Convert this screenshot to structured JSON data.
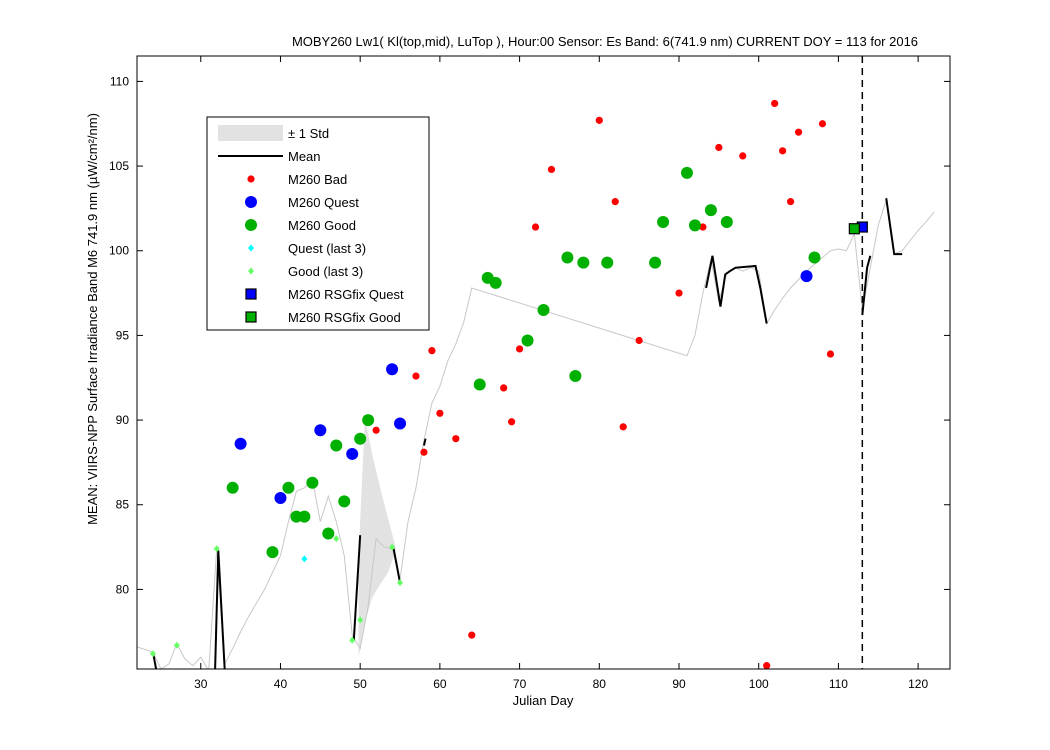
{
  "chart_data": {
    "type": "scatter",
    "title": "MOBY260   Lw1( Kl(top,mid), LuTop ),   Hour:00 Sensor: Es Band: 6(741.9 nm)   CURRENT DOY = 113 for 2016",
    "xlabel": "Julian Day",
    "ylabel": "MEAN: VIIRS-NPP Surface Irradiance Band M6 741.9 nm (µW/cm²/nm)",
    "xlim": [
      22,
      124
    ],
    "ylim": [
      75.3,
      111.5
    ],
    "xticks": [
      "30",
      "40",
      "50",
      "60",
      "70",
      "80",
      "90",
      "100",
      "110",
      "120"
    ],
    "yticks": [
      "80",
      "85",
      "90",
      "95",
      "100",
      "105",
      "110"
    ],
    "grid": false,
    "legend_position": "top-left",
    "current_doy": 113,
    "colors": {
      "bad": "#ff0000",
      "quest": "#0000ff",
      "good": "#00b000",
      "quest_last3": "#00ffff",
      "good_last3": "#66ff66",
      "std_band": "#e2e2e2",
      "mean": "#000000",
      "thin_line": "#c8c8c8"
    },
    "legend": [
      {
        "label": "± 1 Std",
        "kind": "band"
      },
      {
        "label": "Mean",
        "kind": "line"
      },
      {
        "label": "M260 Bad",
        "kind": "bad"
      },
      {
        "label": "M260 Quest",
        "kind": "quest"
      },
      {
        "label": "M260 Good",
        "kind": "good"
      },
      {
        "label": "Quest (last 3)",
        "kind": "quest_last3"
      },
      {
        "label": "Good (last 3)",
        "kind": "good_last3"
      },
      {
        "label": "M260 RSGfix Quest",
        "kind": "rsg_quest"
      },
      {
        "label": "M260 RSGfix Good",
        "kind": "rsg_good"
      }
    ],
    "series": [
      {
        "name": "M260 Bad",
        "x": [
          52,
          57,
          58,
          59,
          60,
          62,
          64,
          68,
          69,
          70,
          72,
          74,
          80,
          82,
          83,
          85,
          90,
          93,
          95,
          98,
          101,
          102,
          103,
          104,
          105,
          108,
          109
        ],
        "y": [
          89.4,
          92.6,
          88.1,
          94.1,
          90.4,
          88.9,
          77.3,
          91.9,
          89.9,
          94.2,
          101.4,
          104.8,
          107.7,
          102.9,
          89.6,
          94.7,
          97.5,
          101.4,
          106.1,
          105.6,
          75.5,
          108.7,
          105.9,
          102.9,
          107.0,
          107.5,
          93.9
        ]
      },
      {
        "name": "M260 Quest",
        "x": [
          35,
          40,
          45,
          49,
          54,
          55,
          106
        ],
        "y": [
          88.6,
          85.4,
          89.4,
          88.0,
          93.0,
          89.8,
          98.5
        ]
      },
      {
        "name": "M260 Good",
        "x": [
          34,
          39,
          41,
          42,
          43,
          44,
          46,
          47,
          48,
          50,
          51,
          65,
          66,
          67,
          71,
          73,
          76,
          77,
          78,
          81,
          87,
          88,
          91,
          92,
          94,
          96,
          107
        ],
        "y": [
          86.0,
          82.2,
          86.0,
          84.3,
          84.3,
          86.3,
          83.3,
          88.5,
          85.2,
          88.9,
          90.0,
          92.1,
          98.4,
          98.1,
          94.7,
          96.5,
          99.6,
          92.6,
          99.3,
          99.3,
          99.3,
          101.7,
          104.6,
          101.5,
          102.4,
          101.7,
          99.6
        ]
      },
      {
        "name": "Quest (last 3)",
        "x": [
          43
        ],
        "y": [
          81.8
        ]
      },
      {
        "name": "Good (last 3)",
        "x": [
          24,
          27,
          32,
          47,
          49,
          50,
          54,
          55
        ],
        "y": [
          76.2,
          76.7,
          82.4,
          83.0,
          77.0,
          78.2,
          82.5,
          80.4
        ]
      },
      {
        "name": "M260 RSGfix Quest",
        "x": [
          113
        ],
        "y": [
          101.4
        ]
      },
      {
        "name": "M260 RSGfix Good",
        "x": [
          112
        ],
        "y": [
          101.3
        ]
      }
    ],
    "thin_line": {
      "x": [
        22,
        24,
        25,
        26,
        27,
        28,
        29,
        30,
        31,
        32,
        33,
        34,
        35,
        36,
        37,
        38,
        39,
        40,
        41,
        42,
        43,
        44,
        45,
        46,
        47,
        48,
        49,
        50,
        51,
        52,
        53,
        54,
        55,
        56,
        57,
        58,
        59,
        60,
        61,
        62,
        63,
        64,
        91,
        92,
        93,
        94,
        95,
        96,
        97,
        98,
        99,
        100,
        101,
        102,
        103,
        104,
        105,
        106,
        107,
        108,
        109,
        110,
        111,
        112,
        113,
        114,
        115,
        116,
        117,
        118,
        119,
        120,
        121,
        122
      ],
      "y": [
        76.6,
        76.3,
        75.3,
        75.6,
        76.8,
        75.9,
        75.5,
        76.0,
        75.2,
        82.4,
        75.6,
        76.5,
        77.5,
        78.4,
        79.2,
        80.0,
        81.0,
        82.0,
        84.0,
        85.8,
        86.0,
        86.5,
        84.0,
        85.5,
        84.0,
        82.0,
        77.3,
        76.5,
        79.0,
        83.0,
        82.5,
        82.4,
        80.6,
        84.0,
        86.0,
        88.8,
        91.0,
        92.0,
        93.5,
        94.5,
        95.8,
        97.8,
        93.8,
        95.0,
        97.5,
        99.5,
        97.0,
        98.7,
        99.0,
        98.8,
        99.0,
        98.8,
        95.7,
        96.5,
        97.2,
        97.8,
        98.3,
        98.8,
        99.2,
        99.6,
        100.0,
        100.1,
        100.0,
        101.0,
        96.5,
        99.0,
        101.5,
        103.0,
        99.8,
        100.0,
        100.6,
        101.2,
        101.7,
        102.3
      ]
    },
    "mean_segments": [
      {
        "x": [
          24,
          24.4
        ],
        "y": [
          76.3,
          75.3
        ]
      },
      {
        "x": [
          31.8,
          32.2,
          33
        ],
        "y": [
          75.3,
          82.3,
          75.3
        ]
      },
      {
        "x": [
          49.2,
          50
        ],
        "y": [
          77.0,
          83.2
        ]
      },
      {
        "x": [
          54.2,
          55
        ],
        "y": [
          82.4,
          80.4
        ]
      },
      {
        "x": [
          58,
          58.2
        ],
        "y": [
          88.5,
          88.9
        ]
      },
      {
        "x": [
          93.4,
          94.2,
          95.2,
          95.8,
          96.4,
          97.1,
          99.6,
          100.2,
          101
        ],
        "y": [
          97.8,
          99.7,
          96.7,
          98.6,
          98.8,
          99.0,
          99.1,
          97.8,
          95.7
        ]
      },
      {
        "x": [
          113,
          113.6,
          114
        ],
        "y": [
          96.2,
          99.0,
          99.7
        ]
      },
      {
        "x": [
          116,
          117,
          118
        ],
        "y": [
          103.1,
          99.8,
          99.8
        ]
      }
    ],
    "std_band": {
      "x": [
        49.8,
        50.6,
        51.5,
        52.5,
        53.5,
        54.5
      ],
      "upper": [
        82.0,
        90.2,
        88.0,
        86.0,
        84.2,
        82.4
      ],
      "lower": [
        76.0,
        78.0,
        79.5,
        80.3,
        81.0,
        82.4
      ]
    }
  }
}
